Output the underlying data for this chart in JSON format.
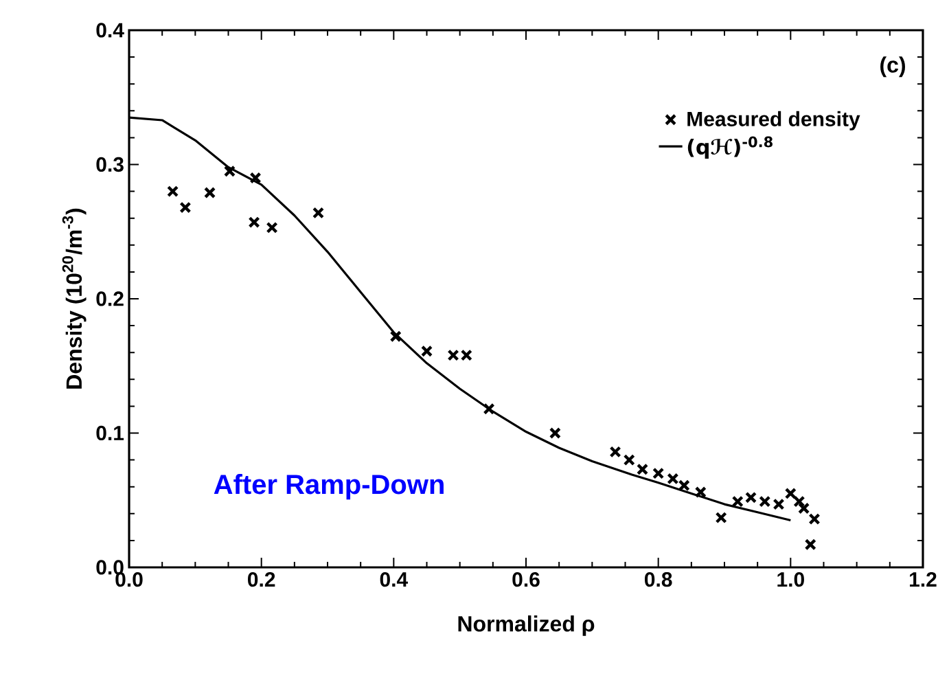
{
  "chart_data": {
    "type": "scatter",
    "xlabel": "Normalized ρ",
    "ylabel": "Density (10$^{20}$/m$^{-3}$)",
    "xlim": [
      0,
      1.2
    ],
    "ylim": [
      0,
      0.4
    ],
    "xticks": [
      {
        "value": 0,
        "label": "0.0"
      },
      {
        "value": 0.2,
        "label": "0.2"
      },
      {
        "value": 0.4,
        "label": "0.4"
      },
      {
        "value": 0.6,
        "label": "0.6"
      },
      {
        "value": 0.8,
        "label": "0.8"
      },
      {
        "value": 1.0,
        "label": "1.0"
      },
      {
        "value": 1.2,
        "label": "1.2"
      }
    ],
    "yticks": [
      {
        "value": 0,
        "label": "0.0"
      },
      {
        "value": 0.1,
        "label": "0.1"
      },
      {
        "value": 0.2,
        "label": "0.2"
      },
      {
        "value": 0.3,
        "label": "0.3"
      },
      {
        "value": 0.4,
        "label": "0.4"
      }
    ],
    "legend": "top right",
    "grid": false,
    "annotations": [
      "(c)",
      "After Ramp-Down"
    ],
    "series": [
      {
        "name": "Measured density",
        "marker": "cross",
        "color": "#000000",
        "x": [
          0.066,
          0.085,
          0.122,
          0.152,
          0.189,
          0.191,
          0.216,
          0.286,
          0.403,
          0.45,
          0.49,
          0.51,
          0.544,
          0.644,
          0.735,
          0.756,
          0.776,
          0.8,
          0.822,
          0.839,
          0.864,
          0.895,
          0.92,
          0.94,
          0.961,
          0.982,
          1.0,
          1.013,
          1.02,
          1.03,
          1.036
        ],
        "values": [
          0.28,
          0.268,
          0.279,
          0.295,
          0.257,
          0.29,
          0.253,
          0.264,
          0.172,
          0.161,
          0.158,
          0.158,
          0.118,
          0.1,
          0.086,
          0.08,
          0.073,
          0.07,
          0.066,
          0.061,
          0.056,
          0.037,
          0.049,
          0.052,
          0.049,
          0.047,
          0.055,
          0.049,
          0.044,
          0.017,
          0.036
        ]
      },
      {
        "name": "(qℋ)$^{-0.8}$",
        "type": "line",
        "marker": "none",
        "line_style": "solid",
        "color": "#000000",
        "x": [
          0,
          0.05,
          0.1,
          0.15,
          0.2,
          0.25,
          0.3,
          0.35,
          0.4,
          0.45,
          0.5,
          0.55,
          0.6,
          0.65,
          0.7,
          0.76,
          0.8,
          0.85,
          0.9,
          0.95,
          1.0
        ],
        "values": [
          0.335,
          0.333,
          0.318,
          0.298,
          0.285,
          0.262,
          0.235,
          0.205,
          0.175,
          0.152,
          0.133,
          0.116,
          0.101,
          0.089,
          0.079,
          0.069,
          0.063,
          0.055,
          0.047,
          0.041,
          0.035
        ]
      }
    ]
  }
}
